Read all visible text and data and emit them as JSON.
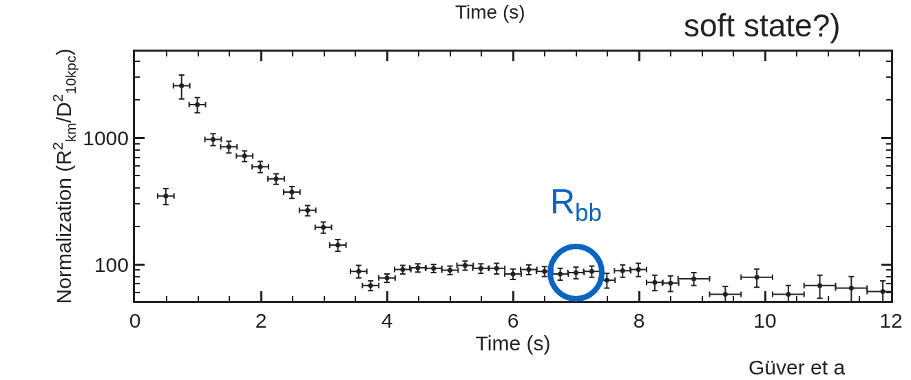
{
  "chart_data": {
    "type": "scatter",
    "marker": "none",
    "log": "y",
    "legend": false,
    "xlabel": "Time (s)",
    "ylabel": "Normalization (R$^{2}$$_{km}$/D$^{2}$$_{10kpc}$)",
    "x": [
      0.49,
      0.74,
      0.99,
      1.24,
      1.49,
      1.74,
      1.99,
      2.24,
      2.49,
      2.74,
      2.99,
      3.22,
      3.55,
      3.74,
      4.0,
      4.25,
      4.49,
      4.74,
      5.0,
      5.24,
      5.49,
      5.74,
      6.0,
      6.25,
      6.5,
      6.75,
      7.0,
      7.25,
      7.49,
      7.74,
      7.99,
      8.25,
      8.5,
      8.87,
      9.37,
      9.87,
      10.37,
      10.87,
      11.37,
      11.87
    ],
    "values": [
      346,
      2576,
      1828,
      971,
      849,
      718,
      590,
      474,
      372,
      267,
      196,
      142,
      88,
      68,
      78,
      91,
      94,
      93,
      90,
      98,
      93,
      93,
      84,
      91,
      88,
      84,
      86,
      88,
      75,
      89,
      91,
      72,
      71,
      77,
      58,
      79,
      58,
      68,
      65,
      61
    ],
    "errors": [
      50,
      550,
      250,
      105,
      90,
      70,
      60,
      45,
      40,
      25,
      20,
      15,
      10,
      6,
      6,
      7,
      7,
      7,
      7,
      8,
      8,
      9,
      8,
      8,
      8,
      9,
      9,
      9,
      10,
      10,
      11,
      10,
      10,
      9,
      9,
      13,
      10,
      14,
      15,
      13
    ],
    "xerrors": [
      0.13,
      0.13,
      0.13,
      0.13,
      0.13,
      0.13,
      0.13,
      0.13,
      0.13,
      0.13,
      0.13,
      0.13,
      0.13,
      0.13,
      0.13,
      0.13,
      0.13,
      0.13,
      0.13,
      0.13,
      0.13,
      0.13,
      0.13,
      0.13,
      0.13,
      0.13,
      0.13,
      0.13,
      0.13,
      0.13,
      0.13,
      0.13,
      0.13,
      0.25,
      0.25,
      0.25,
      0.25,
      0.25,
      0.25,
      0.25
    ],
    "color": "#222222",
    "xlim": [
      0,
      12
    ],
    "ylim": [
      51.5,
      4790
    ],
    "xticks": [
      0,
      2,
      4,
      6,
      8,
      10,
      12,
      {
        "value": 0.5,
        "label": null
      },
      {
        "value": 1,
        "label": null
      },
      {
        "value": 1.5,
        "label": null
      },
      {
        "value": 2.5,
        "label": null
      },
      {
        "value": 3,
        "label": null
      },
      {
        "value": 3.5,
        "label": null
      },
      {
        "value": 4.5,
        "label": null
      },
      {
        "value": 5,
        "label": null
      },
      {
        "value": 5.5,
        "label": null
      },
      {
        "value": 6.5,
        "label": null
      },
      {
        "value": 7,
        "label": null
      },
      {
        "value": 7.5,
        "label": null
      },
      {
        "value": 8.5,
        "label": null
      },
      {
        "value": 9,
        "label": null
      },
      {
        "value": 9.5,
        "label": null
      },
      {
        "value": 10.5,
        "label": null
      },
      {
        "value": 11,
        "label": null
      },
      {
        "value": 11.5,
        "label": null
      }
    ],
    "yticks": [
      100,
      1000,
      {
        "value": 60,
        "label": null
      },
      {
        "value": 70,
        "label": null
      },
      {
        "value": 80,
        "label": null
      },
      {
        "value": 90,
        "label": null
      },
      {
        "value": 200,
        "label": null
      },
      {
        "value": 300,
        "label": null
      },
      {
        "value": 400,
        "label": null
      },
      {
        "value": 500,
        "label": null
      },
      {
        "value": 600,
        "label": null
      },
      {
        "value": 700,
        "label": null
      },
      {
        "value": 800,
        "label": null
      },
      {
        "value": 900,
        "label": null
      },
      {
        "value": 2000,
        "label": null
      },
      {
        "value": 3000,
        "label": null
      },
      {
        "value": 4000,
        "label": null
      }
    ],
    "annotations": [
      {
        "text": "R$_{bb}$",
        "x": 7.0,
        "y": 86
      },
      "Time (s)",
      "soft state?)",
      "Güver et a"
    ]
  }
}
